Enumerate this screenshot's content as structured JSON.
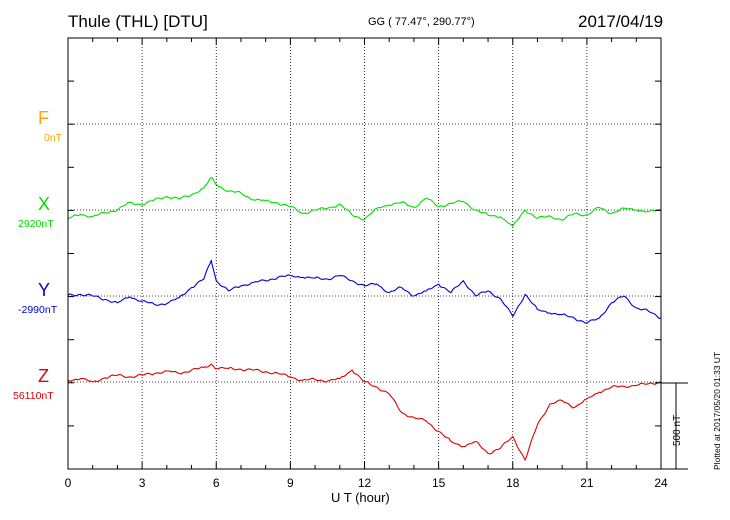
{
  "header": {
    "station": "Thule (THL)  [DTU]",
    "coordinates": "GG ( 77.47°, 290.77°)",
    "date": "2017/04/19"
  },
  "footer": {
    "plotted": "Plotted at 2017/05/20 01:33 UT"
  },
  "chart_data": {
    "type": "line",
    "xlabel": "U T (hour)",
    "xlim": [
      0,
      24
    ],
    "xticks": [
      "0",
      "3",
      "6",
      "9",
      "12",
      "15",
      "18",
      "21",
      "24"
    ],
    "grid": true,
    "scale_bar": "500 nT",
    "series": [
      {
        "name": "F",
        "baseline": "0nT",
        "color": "#ffa500",
        "x": [],
        "values": []
      },
      {
        "name": "X",
        "baseline": "2920nT",
        "color": "#00e000",
        "x": [
          0,
          0.5,
          1,
          1.5,
          2,
          2.5,
          3,
          3.5,
          4,
          4.5,
          5,
          5.5,
          5.8,
          6,
          6.5,
          7,
          7.5,
          8,
          8.5,
          9,
          9.5,
          10,
          10.5,
          11,
          11.5,
          12,
          12.5,
          13,
          13.5,
          14,
          14.5,
          15,
          15.5,
          16,
          16.5,
          17,
          17.5,
          18,
          18.5,
          19,
          19.5,
          20,
          20.5,
          21,
          21.5,
          22,
          22.5,
          23,
          23.5,
          24
        ],
        "values": [
          2870,
          2895,
          2880,
          2905,
          2920,
          2965,
          2950,
          2980,
          3000,
          2985,
          3010,
          3050,
          3110,
          3070,
          3030,
          3020,
          2980,
          2975,
          2960,
          2940,
          2900,
          2920,
          2930,
          2955,
          2890,
          2865,
          2930,
          2950,
          2965,
          2935,
          2990,
          2940,
          2960,
          2970,
          2920,
          2890,
          2880,
          2825,
          2920,
          2870,
          2885,
          2860,
          2900,
          2890,
          2935,
          2900,
          2930,
          2920,
          2910,
          2920
        ]
      },
      {
        "name": "Y",
        "baseline": "-2990nT",
        "color": "#0000e0",
        "x": [
          0,
          0.5,
          1,
          1.5,
          2,
          2.5,
          3,
          3.5,
          4,
          4.5,
          5,
          5.5,
          5.8,
          6,
          6.5,
          7,
          7.5,
          8,
          8.5,
          9,
          9.5,
          10,
          10.5,
          11,
          11.5,
          12,
          12.5,
          13,
          13.5,
          14,
          14.5,
          15,
          15.5,
          16,
          16.5,
          17,
          17.5,
          18,
          18.5,
          19,
          19.5,
          20,
          20.5,
          21,
          21.5,
          22,
          22.5,
          23,
          23.5,
          24
        ],
        "values": [
          -2985,
          -2980,
          -2990,
          -3010,
          -3030,
          -2995,
          -3020,
          -3040,
          -3035,
          -3000,
          -2940,
          -2890,
          -2780,
          -2900,
          -2960,
          -2930,
          -2910,
          -2900,
          -2880,
          -2870,
          -2880,
          -2885,
          -2890,
          -2870,
          -2900,
          -2930,
          -2920,
          -2970,
          -2940,
          -2990,
          -2960,
          -2920,
          -2970,
          -2900,
          -2990,
          -2960,
          -3005,
          -3110,
          -2980,
          -3070,
          -3090,
          -3100,
          -3120,
          -3150,
          -3120,
          -3030,
          -2990,
          -3060,
          -3080,
          -3120
        ]
      },
      {
        "name": "Z",
        "baseline": "56110nT",
        "color": "#e00000",
        "x": [
          0,
          0.5,
          1,
          1.5,
          2,
          2.5,
          3,
          3.5,
          4,
          4.5,
          5,
          5.5,
          5.8,
          6,
          6.5,
          7,
          7.5,
          8,
          8.5,
          9,
          9.5,
          10,
          10.5,
          11,
          11.5,
          12,
          12.5,
          13,
          13.5,
          14,
          14.5,
          15,
          15.5,
          16,
          16.5,
          17,
          17.5,
          18,
          18.5,
          19,
          19.5,
          20,
          20.5,
          21,
          21.5,
          22,
          22.5,
          23,
          23.5,
          24
        ],
        "values": [
          56120,
          56130,
          56110,
          56135,
          56150,
          56140,
          56150,
          56160,
          56175,
          56160,
          56180,
          56195,
          56215,
          56190,
          56190,
          56185,
          56180,
          56170,
          56160,
          56140,
          56120,
          56125,
          56115,
          56130,
          56180,
          56110,
          56080,
          56040,
          55930,
          55900,
          55880,
          55820,
          55760,
          55730,
          55760,
          55690,
          55720,
          55790,
          55650,
          55860,
          55980,
          56000,
          55960,
          56010,
          56050,
          56080,
          56085,
          56090,
          56100,
          56110
        ]
      }
    ]
  }
}
